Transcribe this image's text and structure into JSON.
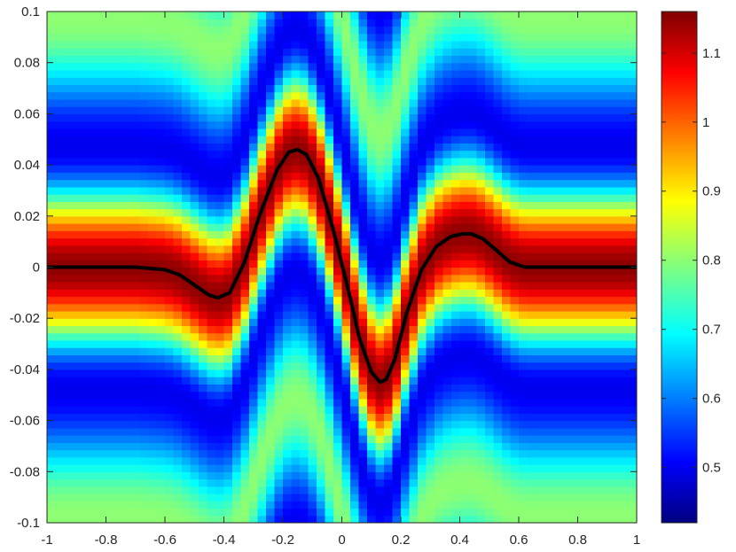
{
  "chart_data": {
    "type": "heatmap",
    "title": "",
    "xlabel": "",
    "ylabel": "",
    "xlim": [
      -1,
      1
    ],
    "ylim": [
      -0.1,
      0.1
    ],
    "xticks": [
      -1,
      -0.8,
      -0.6,
      -0.4,
      -0.2,
      0,
      0.2,
      0.4,
      0.6,
      0.8,
      1
    ],
    "xtick_labels": [
      "-1",
      "-0.8",
      "-0.6",
      "-0.4",
      "-0.2",
      "0",
      "0.2",
      "0.4",
      "0.6",
      "0.8",
      "1"
    ],
    "yticks": [
      0.1,
      0.08,
      0.06,
      0.04,
      0.02,
      0,
      -0.02,
      -0.04,
      -0.06,
      -0.08,
      -0.1
    ],
    "ytick_labels": [
      "0.1",
      "0.08",
      "0.06",
      "0.04",
      "0.02",
      "0",
      "-0.02",
      "-0.04",
      "-0.06",
      "-0.08",
      "-0.1"
    ],
    "colormap": "jet",
    "colorbar": {
      "range": [
        0.42,
        1.16
      ],
      "ticks": [
        0.5,
        0.6,
        0.7,
        0.8,
        0.9,
        1,
        1.1
      ],
      "tick_labels": [
        "0.5",
        "0.6",
        "0.7",
        "0.8",
        "0.9",
        "1",
        "1.1"
      ]
    },
    "grid": false,
    "overlay_line": {
      "color": "#000000",
      "x": [
        -1,
        -0.8,
        -0.7,
        -0.6,
        -0.55,
        -0.5,
        -0.45,
        -0.42,
        -0.38,
        -0.33,
        -0.28,
        -0.22,
        -0.18,
        -0.15,
        -0.12,
        -0.08,
        -0.03,
        0.02,
        0.06,
        0.1,
        0.13,
        0.15,
        0.18,
        0.22,
        0.27,
        0.32,
        0.37,
        0.41,
        0.44,
        0.48,
        0.52,
        0.57,
        0.62,
        0.68,
        0.8,
        1
      ],
      "y": [
        0,
        0,
        0,
        -0.001,
        -0.003,
        -0.007,
        -0.011,
        -0.012,
        -0.01,
        0.002,
        0.02,
        0.038,
        0.045,
        0.046,
        0.044,
        0.035,
        0.015,
        -0.008,
        -0.028,
        -0.041,
        -0.045,
        -0.044,
        -0.036,
        -0.018,
        -0.001,
        0.008,
        0.012,
        0.013,
        0.013,
        0.011,
        0.007,
        0.002,
        0,
        0,
        0,
        0
      ]
    }
  }
}
